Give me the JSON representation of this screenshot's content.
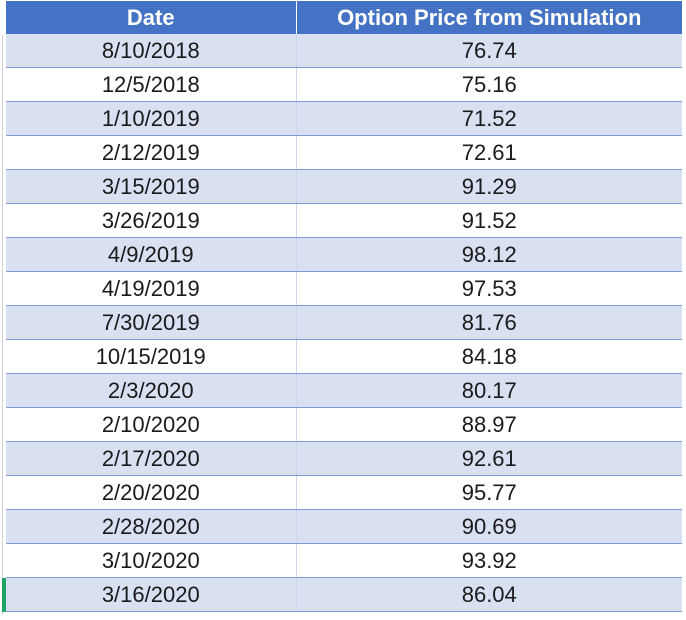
{
  "table": {
    "headers": {
      "date": "Date",
      "price": "Option Price from Simulation"
    },
    "rows": [
      {
        "date": "8/10/2018",
        "price": "76.74"
      },
      {
        "date": "12/5/2018",
        "price": "75.16"
      },
      {
        "date": "1/10/2019",
        "price": "71.52"
      },
      {
        "date": "2/12/2019",
        "price": "72.61"
      },
      {
        "date": "3/15/2019",
        "price": "91.29"
      },
      {
        "date": "3/26/2019",
        "price": "91.52"
      },
      {
        "date": "4/9/2019",
        "price": "98.12"
      },
      {
        "date": "4/19/2019",
        "price": "97.53"
      },
      {
        "date": "7/30/2019",
        "price": "81.76"
      },
      {
        "date": "10/15/2019",
        "price": "84.18"
      },
      {
        "date": "2/3/2020",
        "price": "80.17"
      },
      {
        "date": "2/10/2020",
        "price": "88.97"
      },
      {
        "date": "2/17/2020",
        "price": "92.61"
      },
      {
        "date": "2/20/2020",
        "price": "95.77"
      },
      {
        "date": "2/28/2020",
        "price": "90.69"
      },
      {
        "date": "3/10/2020",
        "price": "93.92"
      },
      {
        "date": "3/16/2020",
        "price": "86.04"
      }
    ]
  },
  "colors": {
    "header_bg": "#4472c4",
    "header_text": "#ffffff",
    "band_row": "#d9e0f1",
    "plain_row": "#ffffff",
    "row_border": "#7f9bd6",
    "selection_marker": "#1fa463"
  }
}
